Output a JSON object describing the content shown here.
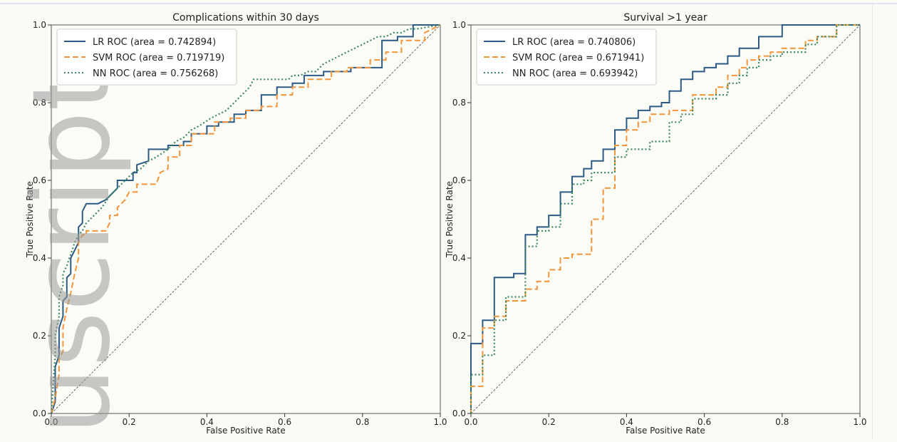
{
  "watermark_text": "uscript",
  "chart_data": [
    {
      "type": "line",
      "title": "Complications within 30 days",
      "xlabel": "False Positive Rate",
      "ylabel": "True Positive Rate",
      "xlim": [
        0,
        1
      ],
      "ylim": [
        0,
        1
      ],
      "xticks": [
        "0.0",
        "0.2",
        "0.4",
        "0.6",
        "0.8",
        "1.0"
      ],
      "yticks": [
        "0.0",
        "0.2",
        "0.4",
        "0.6",
        "0.8",
        "1.0"
      ],
      "grid": false,
      "legend": "top-left",
      "series": [
        {
          "name": "LR ROC (area = 0.742894)",
          "color": "#2b5a86",
          "style": "solid",
          "x": [
            0,
            0.01,
            0.01,
            0.02,
            0.02,
            0.03,
            0.03,
            0.04,
            0.04,
            0.05,
            0.05,
            0.06,
            0.07,
            0.07,
            0.08,
            0.08,
            0.09,
            0.1,
            0.12,
            0.14,
            0.15,
            0.16,
            0.17,
            0.17,
            0.21,
            0.21,
            0.22,
            0.22,
            0.25,
            0.25,
            0.3,
            0.3,
            0.34,
            0.34,
            0.36,
            0.36,
            0.4,
            0.4,
            0.43,
            0.43,
            0.47,
            0.47,
            0.5,
            0.5,
            0.54,
            0.54,
            0.58,
            0.58,
            0.62,
            0.62,
            0.65,
            0.65,
            0.7,
            0.7,
            0.77,
            0.77,
            0.85,
            0.85,
            0.89,
            0.89,
            0.93,
            0.93,
            1.0
          ],
          "y": [
            0,
            0.03,
            0.12,
            0.15,
            0.22,
            0.25,
            0.29,
            0.3,
            0.35,
            0.36,
            0.4,
            0.42,
            0.44,
            0.48,
            0.49,
            0.52,
            0.54,
            0.54,
            0.54,
            0.55,
            0.56,
            0.57,
            0.58,
            0.6,
            0.6,
            0.62,
            0.62,
            0.64,
            0.65,
            0.68,
            0.68,
            0.69,
            0.69,
            0.7,
            0.7,
            0.72,
            0.72,
            0.74,
            0.74,
            0.75,
            0.75,
            0.77,
            0.77,
            0.78,
            0.78,
            0.82,
            0.82,
            0.84,
            0.84,
            0.85,
            0.85,
            0.87,
            0.87,
            0.88,
            0.88,
            0.89,
            0.89,
            0.96,
            0.96,
            0.97,
            0.97,
            1.0,
            1.0
          ]
        },
        {
          "name": "SVM ROC (area = 0.719719)",
          "color": "#f1953a",
          "style": "dashed",
          "x": [
            0,
            0.01,
            0.02,
            0.02,
            0.03,
            0.03,
            0.04,
            0.05,
            0.06,
            0.07,
            0.07,
            0.08,
            0.09,
            0.09,
            0.11,
            0.14,
            0.15,
            0.15,
            0.17,
            0.17,
            0.19,
            0.2,
            0.22,
            0.22,
            0.27,
            0.28,
            0.3,
            0.3,
            0.33,
            0.33,
            0.36,
            0.36,
            0.42,
            0.42,
            0.46,
            0.46,
            0.5,
            0.5,
            0.54,
            0.54,
            0.58,
            0.58,
            0.62,
            0.62,
            0.66,
            0.66,
            0.72,
            0.72,
            0.76,
            0.76,
            0.82,
            0.82,
            0.86,
            0.86,
            0.9,
            0.9,
            0.96,
            0.96,
            1.0
          ],
          "y": [
            0,
            0.04,
            0.1,
            0.14,
            0.16,
            0.22,
            0.27,
            0.31,
            0.36,
            0.4,
            0.44,
            0.46,
            0.46,
            0.47,
            0.47,
            0.47,
            0.49,
            0.51,
            0.51,
            0.53,
            0.55,
            0.57,
            0.57,
            0.59,
            0.59,
            0.62,
            0.63,
            0.66,
            0.66,
            0.69,
            0.69,
            0.72,
            0.72,
            0.75,
            0.75,
            0.76,
            0.76,
            0.78,
            0.78,
            0.79,
            0.79,
            0.82,
            0.82,
            0.84,
            0.84,
            0.86,
            0.86,
            0.88,
            0.88,
            0.89,
            0.89,
            0.91,
            0.91,
            0.93,
            0.93,
            0.96,
            0.96,
            0.98,
            1.0
          ]
        },
        {
          "name": "NN ROC (area = 0.756268)",
          "color": "#3d8760",
          "style": "dotted",
          "x": [
            0,
            0.01,
            0.01,
            0.02,
            0.02,
            0.03,
            0.03,
            0.04,
            0.05,
            0.06,
            0.07,
            0.08,
            0.09,
            0.11,
            0.13,
            0.15,
            0.17,
            0.19,
            0.21,
            0.23,
            0.25,
            0.27,
            0.3,
            0.32,
            0.34,
            0.36,
            0.38,
            0.41,
            0.43,
            0.45,
            0.47,
            0.49,
            0.51,
            0.52,
            0.54,
            0.57,
            0.61,
            0.62,
            0.64,
            0.66,
            0.68,
            0.7,
            0.72,
            0.74,
            0.76,
            0.78,
            0.8,
            0.82,
            0.84,
            0.86,
            0.88,
            0.9,
            0.92,
            0.94,
            1.0
          ],
          "y": [
            0,
            0.15,
            0.2,
            0.25,
            0.3,
            0.33,
            0.36,
            0.38,
            0.41,
            0.44,
            0.46,
            0.47,
            0.49,
            0.51,
            0.53,
            0.56,
            0.58,
            0.6,
            0.62,
            0.63,
            0.65,
            0.66,
            0.68,
            0.7,
            0.71,
            0.73,
            0.74,
            0.76,
            0.77,
            0.78,
            0.8,
            0.82,
            0.84,
            0.86,
            0.86,
            0.86,
            0.86,
            0.87,
            0.87,
            0.88,
            0.88,
            0.9,
            0.91,
            0.92,
            0.93,
            0.94,
            0.95,
            0.96,
            0.97,
            0.97,
            0.98,
            0.98,
            0.99,
            0.99,
            1.0
          ]
        }
      ]
    },
    {
      "type": "line",
      "title": "Survival >1 year",
      "xlabel": "False Positive Rate",
      "ylabel": "True Positive Rate",
      "xlim": [
        0,
        1
      ],
      "ylim": [
        0,
        1
      ],
      "xticks": [
        "0.0",
        "0.2",
        "0.4",
        "0.6",
        "0.8",
        "1.0"
      ],
      "yticks": [
        "0.0",
        "0.2",
        "0.4",
        "0.6",
        "0.8",
        "1.0"
      ],
      "grid": false,
      "legend": "top-left",
      "series": [
        {
          "name": "LR ROC (area = 0.740806)",
          "color": "#2b5a86",
          "style": "solid",
          "x": [
            0,
            0,
            0.03,
            0.03,
            0.06,
            0.06,
            0.11,
            0.11,
            0.14,
            0.14,
            0.17,
            0.17,
            0.2,
            0.2,
            0.23,
            0.23,
            0.26,
            0.26,
            0.29,
            0.29,
            0.31,
            0.31,
            0.34,
            0.34,
            0.37,
            0.37,
            0.4,
            0.4,
            0.43,
            0.43,
            0.46,
            0.46,
            0.49,
            0.49,
            0.51,
            0.51,
            0.54,
            0.54,
            0.57,
            0.57,
            0.6,
            0.6,
            0.63,
            0.63,
            0.66,
            0.66,
            0.69,
            0.69,
            0.74,
            0.74,
            0.8,
            0.8,
            0.91,
            0.91,
            0.94,
            1.0
          ],
          "y": [
            0,
            0.18,
            0.18,
            0.24,
            0.24,
            0.35,
            0.35,
            0.36,
            0.36,
            0.46,
            0.46,
            0.48,
            0.48,
            0.51,
            0.51,
            0.57,
            0.57,
            0.61,
            0.61,
            0.63,
            0.63,
            0.65,
            0.65,
            0.68,
            0.68,
            0.73,
            0.73,
            0.76,
            0.76,
            0.78,
            0.78,
            0.79,
            0.79,
            0.8,
            0.8,
            0.83,
            0.83,
            0.86,
            0.86,
            0.88,
            0.88,
            0.89,
            0.89,
            0.9,
            0.9,
            0.92,
            0.92,
            0.94,
            0.94,
            0.97,
            0.97,
            1.0,
            1.0,
            1.0,
            1.0,
            1.0
          ]
        },
        {
          "name": "SVM ROC (area = 0.671941)",
          "color": "#f1953a",
          "style": "dashed",
          "x": [
            0,
            0,
            0.03,
            0.03,
            0.06,
            0.06,
            0.09,
            0.09,
            0.14,
            0.14,
            0.17,
            0.17,
            0.2,
            0.2,
            0.23,
            0.23,
            0.26,
            0.26,
            0.31,
            0.31,
            0.34,
            0.34,
            0.37,
            0.37,
            0.4,
            0.4,
            0.43,
            0.43,
            0.46,
            0.46,
            0.51,
            0.51,
            0.57,
            0.57,
            0.63,
            0.63,
            0.66,
            0.66,
            0.69,
            0.69,
            0.71,
            0.71,
            0.74,
            0.74,
            0.77,
            0.77,
            0.8,
            0.8,
            0.86,
            0.86,
            0.89,
            0.89,
            0.94,
            0.94,
            1.0
          ],
          "y": [
            0,
            0.07,
            0.07,
            0.22,
            0.22,
            0.25,
            0.25,
            0.29,
            0.29,
            0.32,
            0.32,
            0.34,
            0.34,
            0.37,
            0.37,
            0.4,
            0.4,
            0.41,
            0.41,
            0.5,
            0.5,
            0.58,
            0.58,
            0.69,
            0.69,
            0.73,
            0.73,
            0.75,
            0.75,
            0.77,
            0.77,
            0.78,
            0.78,
            0.82,
            0.82,
            0.84,
            0.84,
            0.87,
            0.87,
            0.89,
            0.89,
            0.91,
            0.91,
            0.92,
            0.92,
            0.93,
            0.93,
            0.94,
            0.94,
            0.96,
            0.96,
            0.97,
            0.97,
            1.0,
            1.0
          ]
        },
        {
          "name": "NN ROC (area = 0.693942)",
          "color": "#3d8760",
          "style": "dotted",
          "x": [
            0,
            0,
            0.03,
            0.03,
            0.06,
            0.06,
            0.09,
            0.09,
            0.14,
            0.14,
            0.17,
            0.17,
            0.2,
            0.2,
            0.23,
            0.23,
            0.26,
            0.26,
            0.29,
            0.29,
            0.31,
            0.31,
            0.37,
            0.37,
            0.4,
            0.4,
            0.46,
            0.46,
            0.51,
            0.51,
            0.54,
            0.54,
            0.57,
            0.57,
            0.63,
            0.63,
            0.66,
            0.66,
            0.69,
            0.69,
            0.71,
            0.71,
            0.74,
            0.74,
            0.77,
            0.77,
            0.8,
            0.8,
            0.86,
            0.86,
            0.89,
            0.89,
            0.94,
            0.94,
            1.0
          ],
          "y": [
            0,
            0.1,
            0.1,
            0.15,
            0.15,
            0.24,
            0.24,
            0.3,
            0.3,
            0.43,
            0.43,
            0.47,
            0.47,
            0.48,
            0.48,
            0.54,
            0.54,
            0.59,
            0.59,
            0.6,
            0.6,
            0.62,
            0.62,
            0.66,
            0.66,
            0.68,
            0.68,
            0.7,
            0.7,
            0.75,
            0.75,
            0.77,
            0.77,
            0.81,
            0.81,
            0.82,
            0.82,
            0.85,
            0.85,
            0.87,
            0.87,
            0.89,
            0.89,
            0.91,
            0.91,
            0.92,
            0.92,
            0.93,
            0.93,
            0.95,
            0.95,
            0.97,
            0.97,
            1.0,
            1.0
          ]
        }
      ]
    }
  ]
}
